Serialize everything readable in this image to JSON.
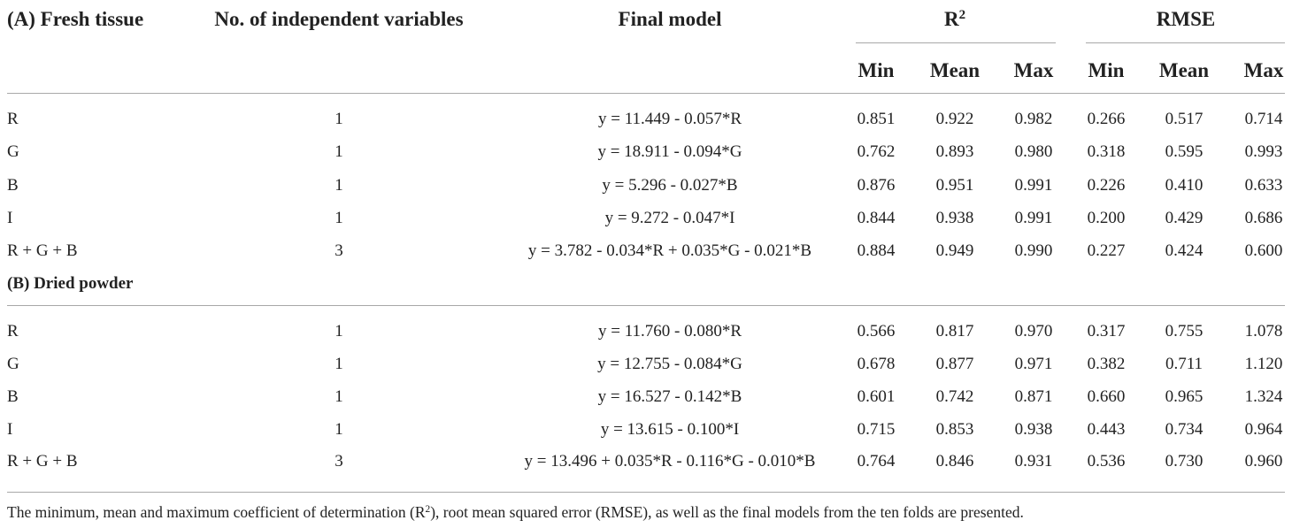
{
  "header": {
    "columns": [
      "No. of independent variables",
      "Final model"
    ],
    "r2": {
      "base": "R",
      "sup": "2"
    },
    "rmse": "RMSE",
    "sub": [
      "Min",
      "Mean",
      "Max",
      "Min",
      "Mean",
      "Max"
    ]
  },
  "sections": [
    {
      "title": "(A) Fresh tissue",
      "rows": [
        [
          "R",
          "1",
          "y = 11.449 - 0.057*R",
          "0.851",
          "0.922",
          "0.982",
          "0.266",
          "0.517",
          "0.714"
        ],
        [
          "G",
          "1",
          "y = 18.911 - 0.094*G",
          "0.762",
          "0.893",
          "0.980",
          "0.318",
          "0.595",
          "0.993"
        ],
        [
          "B",
          "1",
          "y = 5.296 - 0.027*B",
          "0.876",
          "0.951",
          "0.991",
          "0.226",
          "0.410",
          "0.633"
        ],
        [
          "I",
          "1",
          "y = 9.272 - 0.047*I",
          "0.844",
          "0.938",
          "0.991",
          "0.200",
          "0.429",
          "0.686"
        ],
        [
          "R + G + B",
          "3",
          "y = 3.782 - 0.034*R + 0.035*G - 0.021*B",
          "0.884",
          "0.949",
          "0.990",
          "0.227",
          "0.424",
          "0.600"
        ]
      ]
    },
    {
      "title": "(B) Dried powder",
      "rows": [
        [
          "R",
          "1",
          "y = 11.760 - 0.080*R",
          "0.566",
          "0.817",
          "0.970",
          "0.317",
          "0.755",
          "1.078"
        ],
        [
          "G",
          "1",
          "y = 12.755 - 0.084*G",
          "0.678",
          "0.877",
          "0.971",
          "0.382",
          "0.711",
          "1.120"
        ],
        [
          "B",
          "1",
          "y = 16.527 - 0.142*B",
          "0.601",
          "0.742",
          "0.871",
          "0.660",
          "0.965",
          "1.324"
        ],
        [
          "I",
          "1",
          "y = 13.615 - 0.100*I",
          "0.715",
          "0.853",
          "0.938",
          "0.443",
          "0.734",
          "0.964"
        ],
        [
          "R + G + B",
          "3",
          "y = 13.496 + 0.035*R - 0.116*G - 0.010*B",
          "0.764",
          "0.846",
          "0.931",
          "0.536",
          "0.730",
          "0.960"
        ]
      ]
    }
  ],
  "footnote": [
    "The minimum, mean and maximum coefficient of determination (R",
    "2",
    "), root mean squared error (RMSE), as well as the final models from the ten folds are presented."
  ]
}
